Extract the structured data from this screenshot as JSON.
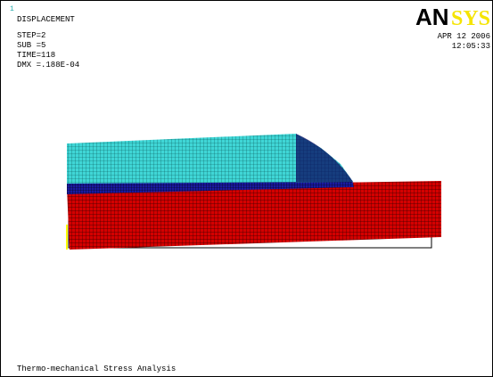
{
  "window_number": "1",
  "info": {
    "title": "DISPLACEMENT",
    "lines": [
      "STEP=2",
      "SUB =5",
      "TIME=118",
      "DMX =.188E-04"
    ]
  },
  "logo": {
    "left": "AN",
    "right": "SYS"
  },
  "timestamp": {
    "date": "APR 12 2006",
    "time": "12:05:33"
  },
  "caption": "Thermo-mechanical Stress Analysis"
}
